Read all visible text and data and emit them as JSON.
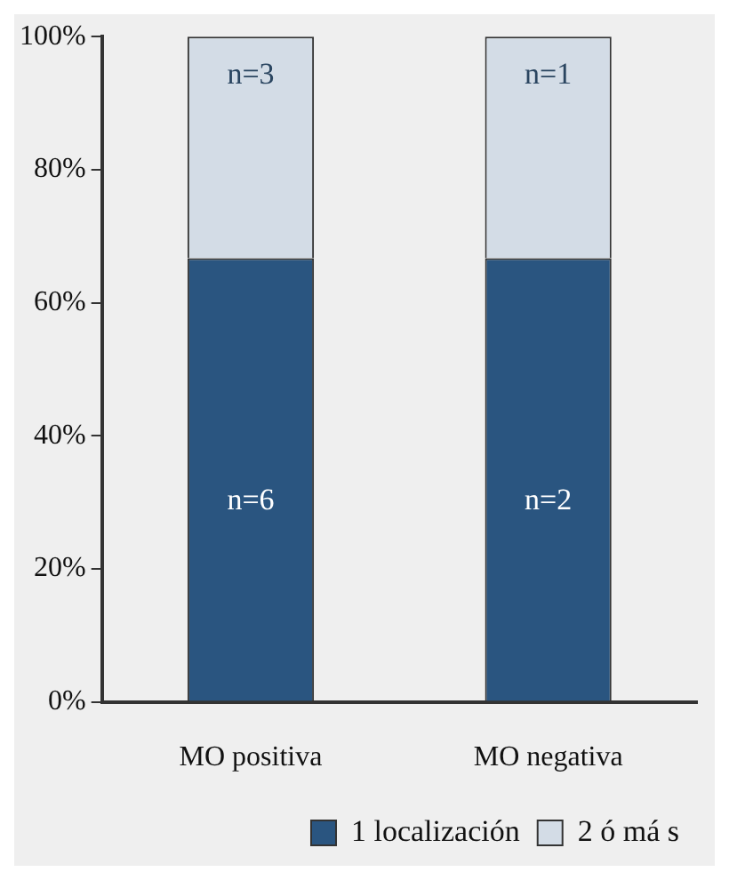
{
  "chart_data": {
    "type": "bar",
    "stacked": true,
    "categories": [
      "MO positiva",
      "MO negativa"
    ],
    "series": [
      {
        "name": "1 localización",
        "color": "#2a5580",
        "values": [
          66.7,
          66.7
        ]
      },
      {
        "name": "2 ó má s",
        "color": "#d3dce6",
        "values": [
          33.3,
          33.3
        ]
      }
    ],
    "annotations": [
      "n=6",
      "n=2",
      "n=3",
      "n=1"
    ],
    "ylim": [
      0,
      100
    ],
    "yticks": [
      {
        "value": 0,
        "label": "0%"
      },
      {
        "value": 20,
        "label": "20%"
      },
      {
        "value": 40,
        "label": "40%"
      },
      {
        "value": 60,
        "label": "60%"
      },
      {
        "value": 80,
        "label": "80%"
      },
      {
        "value": 100,
        "label": "100%"
      }
    ],
    "grid": false,
    "legend": "bottom"
  }
}
